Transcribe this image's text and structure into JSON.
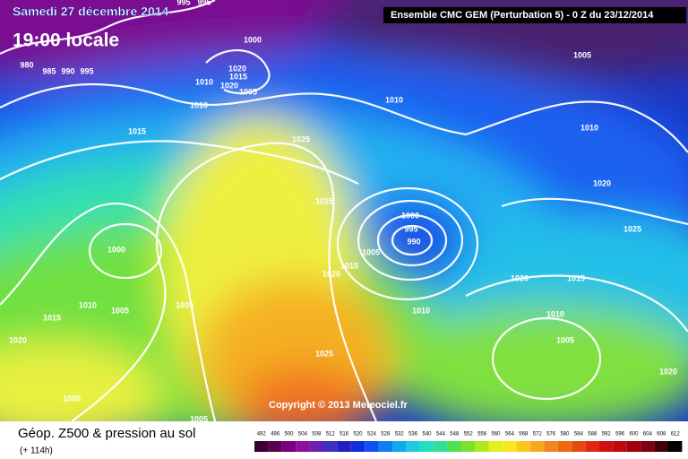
{
  "header": {
    "date": "Samedi 27 décembre 2014",
    "time": "19:00 locale",
    "model": "Ensemble CMC GEM (Perturbation 5) - 0 Z du 23/12/2014"
  },
  "map": {
    "isobar_labels": [
      995,
      995,
      1000,
      980,
      985,
      990,
      995,
      1020,
      1015,
      1020,
      1005,
      1010,
      1010,
      1005,
      1010,
      1015,
      1025,
      1010,
      1020,
      1025,
      1000,
      995,
      990,
      1025,
      1000,
      1005,
      1015,
      1020,
      1020,
      1015,
      1010,
      1005,
      1005,
      1010,
      1010,
      1015,
      1020,
      1005,
      1025,
      1020,
      1000,
      1005
    ],
    "copyright": "Copyright © 2013 Meteociel.fr"
  },
  "legend": {
    "title": "Géop. Z500 & pression au sol",
    "lead_time": "(+ 114h)",
    "scale": [
      492,
      496,
      500,
      504,
      508,
      512,
      516,
      520,
      524,
      528,
      532,
      536,
      540,
      544,
      548,
      552,
      556,
      560,
      564,
      568,
      572,
      576,
      580,
      584,
      588,
      592,
      596,
      600,
      604,
      608,
      612
    ],
    "colors": [
      "#3a0030",
      "#5a0050",
      "#7a0080",
      "#8a10a0",
      "#6a20b0",
      "#4030c0",
      "#2020c0",
      "#1030e0",
      "#1050f0",
      "#1080f0",
      "#10a8f0",
      "#20c8e0",
      "#20e0c0",
      "#30e090",
      "#50e050",
      "#80e030",
      "#b0e820",
      "#e0f020",
      "#f8e820",
      "#f8c820",
      "#f8a820",
      "#f08820",
      "#f06810",
      "#e84810",
      "#e02810",
      "#d01010",
      "#c00810",
      "#a00010",
      "#800010",
      "#400008",
      "#000000"
    ]
  }
}
